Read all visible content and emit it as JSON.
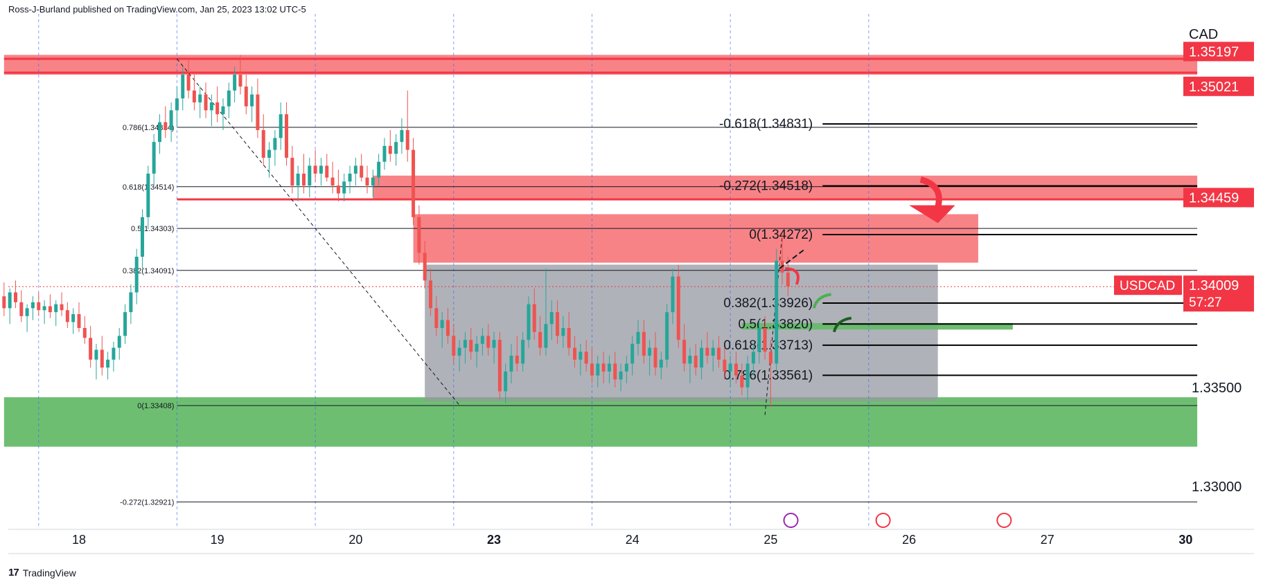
{
  "header": {
    "text": "Ross-J-Burland published on TradingView.com, Jan 25, 2023 13:02 UTC-5"
  },
  "footer": {
    "brand": "TradingView",
    "logo_glyph": "17"
  },
  "currency": "CAD",
  "symbol_tag": {
    "symbol": "USDCAD",
    "price": "1.34009",
    "countdown": "57:27",
    "color": "#f23645"
  },
  "colors": {
    "up": "#26a69a",
    "down": "#ef5350",
    "red_zone": "#f77c80",
    "green_zone": "#66bb6a",
    "grey_box": "#9598a1"
  },
  "chart_data": {
    "type": "candlestick",
    "ylim": [
      1.328,
      1.353
    ],
    "price_labels": [
      {
        "text": "1.35197",
        "value": 1.35197,
        "boxed": true
      },
      {
        "text": "1.35021",
        "value": 1.35021,
        "boxed": true
      },
      {
        "text": "1.34459",
        "value": 1.34459,
        "boxed": true
      },
      {
        "text": "1.33500",
        "value": 1.335,
        "boxed": false
      },
      {
        "text": "1.33000",
        "value": 1.33,
        "boxed": false
      }
    ],
    "x_ticks": [
      {
        "label": "18",
        "t": 0,
        "bold": false
      },
      {
        "label": "19",
        "t": 24,
        "bold": false
      },
      {
        "label": "20",
        "t": 48,
        "bold": false
      },
      {
        "label": "23",
        "t": 72,
        "bold": true
      },
      {
        "label": "24",
        "t": 96,
        "bold": false
      },
      {
        "label": "25",
        "t": 120,
        "bold": false
      },
      {
        "label": "26",
        "t": 144,
        "bold": false
      },
      {
        "label": "27",
        "t": 168,
        "bold": false
      },
      {
        "label": "30",
        "t": 192,
        "bold": true
      }
    ],
    "session_lines_t": [
      -7,
      17,
      41,
      65,
      89,
      113,
      137
    ],
    "zones": [
      {
        "name": "upper-resistance-zone",
        "t0": -13,
        "t1": 194,
        "y0": 1.3518,
        "y1": 1.3508,
        "color": "#f77c80"
      },
      {
        "name": "mid-resistance-zone",
        "t0": 51,
        "t1": 194,
        "y0": 1.3457,
        "y1": 1.3445,
        "color": "#f77c80"
      },
      {
        "name": "lower-resistance-zone",
        "t0": 58,
        "t1": 156,
        "y0": 1.34375,
        "y1": 1.3413,
        "color": "#f77c80"
      },
      {
        "name": "support-zone",
        "t0": -13,
        "t1": 194,
        "y0": 1.3345,
        "y1": 1.332,
        "color": "#66bb6a"
      },
      {
        "name": "range-box",
        "t0": 60,
        "t1": 149,
        "y0": 1.3412,
        "y1": 1.3343,
        "color": "#9598a1"
      },
      {
        "name": "target-bar",
        "t0": 115,
        "t1": 162,
        "y0": 1.33825,
        "y1": 1.33792,
        "color": "#66bb6a"
      }
    ],
    "hlines": [
      {
        "name": "top-red-line",
        "t0": -13,
        "t1": 194,
        "y": 1.3516,
        "color": "#f23645",
        "w": 3
      },
      {
        "name": "top-red-line-2",
        "t0": -13,
        "t1": 194,
        "y": 1.3509,
        "color": "#f23645",
        "w": 3
      },
      {
        "name": "mid-red-line",
        "t0": 17,
        "t1": 194,
        "y": 1.3445,
        "color": "#f23645",
        "w": 3
      }
    ],
    "fib_left": {
      "t0": 17,
      "t1": 194,
      "levels": [
        {
          "text": "0.786(1.34814)",
          "y": 1.34814
        },
        {
          "text": "0.618(1.34514)",
          "y": 1.34514
        },
        {
          "text": "0.5(1.34303)",
          "y": 1.34303
        },
        {
          "text": "0.382(1.34091)",
          "y": 1.34091
        },
        {
          "text": "0(1.33408)",
          "y": 1.33408
        },
        {
          "text": "-0.272(1.32921)",
          "y": 1.32921
        }
      ]
    },
    "fib_right": {
      "t0": 129,
      "t1": 194,
      "levels": [
        {
          "text": "-0.618(1.34831)",
          "y": 1.34831
        },
        {
          "text": "-0.272(1.34518)",
          "y": 1.34518
        },
        {
          "text": "0(1.34272)",
          "y": 1.34272
        },
        {
          "text": "0.382(1.33926)",
          "y": 1.33926
        },
        {
          "text": "0.5(1.33820)",
          "y": 1.3382
        },
        {
          "text": "0.618(1.33713)",
          "y": 1.33713
        },
        {
          "text": "0.786(1.33561)",
          "y": 1.33561
        }
      ]
    },
    "current_price": 1.34009,
    "candles": [
      [
        -13,
        1.3396,
        1.3403,
        1.3386,
        1.339
      ],
      [
        -12,
        1.339,
        1.34,
        1.3382,
        1.3398
      ],
      [
        -11,
        1.3398,
        1.3404,
        1.339,
        1.3393
      ],
      [
        -10,
        1.3393,
        1.3399,
        1.3383,
        1.3386
      ],
      [
        -9,
        1.3386,
        1.3392,
        1.3378,
        1.339
      ],
      [
        -8,
        1.339,
        1.3396,
        1.3384,
        1.3393
      ],
      [
        -7,
        1.3393,
        1.3398,
        1.3386,
        1.3389
      ],
      [
        -6,
        1.3389,
        1.3394,
        1.3382,
        1.3391
      ],
      [
        -5,
        1.3391,
        1.3397,
        1.3385,
        1.3388
      ],
      [
        -4,
        1.3388,
        1.3394,
        1.3381,
        1.3392
      ],
      [
        -3,
        1.3392,
        1.3398,
        1.3386,
        1.3389
      ],
      [
        -2,
        1.3389,
        1.3393,
        1.338,
        1.3383
      ],
      [
        -1,
        1.3383,
        1.339,
        1.3377,
        1.3387
      ],
      [
        0,
        1.3387,
        1.3393,
        1.3378,
        1.338
      ],
      [
        1,
        1.338,
        1.3386,
        1.3372,
        1.3375
      ],
      [
        2,
        1.3375,
        1.3381,
        1.336,
        1.3364
      ],
      [
        3,
        1.3364,
        1.3372,
        1.3354,
        1.3369
      ],
      [
        4,
        1.3369,
        1.3376,
        1.3356,
        1.336
      ],
      [
        5,
        1.336,
        1.3368,
        1.3354,
        1.3364
      ],
      [
        6,
        1.3364,
        1.3373,
        1.3358,
        1.337
      ],
      [
        7,
        1.337,
        1.338,
        1.3364,
        1.3376
      ],
      [
        8,
        1.3376,
        1.3392,
        1.3372,
        1.3388
      ],
      [
        9,
        1.3388,
        1.3402,
        1.3382,
        1.3398
      ],
      [
        10,
        1.3398,
        1.342,
        1.3392,
        1.3416
      ],
      [
        11,
        1.3416,
        1.344,
        1.341,
        1.3436
      ],
      [
        12,
        1.3436,
        1.3462,
        1.343,
        1.3458
      ],
      [
        13,
        1.3458,
        1.3478,
        1.3452,
        1.3474
      ],
      [
        14,
        1.3474,
        1.3488,
        1.3468,
        1.3484
      ],
      [
        15,
        1.3484,
        1.3492,
        1.3476,
        1.348
      ],
      [
        16,
        1.348,
        1.3494,
        1.3474,
        1.349
      ],
      [
        17,
        1.349,
        1.3502,
        1.3482,
        1.3496
      ],
      [
        18,
        1.3496,
        1.3512,
        1.349,
        1.3508
      ],
      [
        19,
        1.3508,
        1.3516,
        1.3496,
        1.35
      ],
      [
        20,
        1.35,
        1.3508,
        1.349,
        1.3494
      ],
      [
        21,
        1.3494,
        1.3502,
        1.3486,
        1.3498
      ],
      [
        22,
        1.3498,
        1.3504,
        1.3486,
        1.349
      ],
      [
        23,
        1.349,
        1.3498,
        1.3482,
        1.3494
      ],
      [
        24,
        1.3494,
        1.3502,
        1.3484,
        1.3488
      ],
      [
        25,
        1.3488,
        1.3496,
        1.348,
        1.3492
      ],
      [
        26,
        1.3492,
        1.3504,
        1.3486,
        1.35
      ],
      [
        27,
        1.35,
        1.3512,
        1.3494,
        1.3508
      ],
      [
        28,
        1.3508,
        1.3518,
        1.3498,
        1.3502
      ],
      [
        29,
        1.3502,
        1.3508,
        1.3488,
        1.3492
      ],
      [
        30,
        1.3492,
        1.3502,
        1.3484,
        1.3498
      ],
      [
        31,
        1.3498,
        1.3506,
        1.3476,
        1.348
      ],
      [
        32,
        1.348,
        1.3488,
        1.3462,
        1.3466
      ],
      [
        33,
        1.3466,
        1.3474,
        1.3456,
        1.347
      ],
      [
        34,
        1.347,
        1.348,
        1.3462,
        1.3476
      ],
      [
        35,
        1.3476,
        1.3494,
        1.347,
        1.3488
      ],
      [
        36,
        1.3488,
        1.3494,
        1.3462,
        1.3466
      ],
      [
        37,
        1.3466,
        1.3472,
        1.3448,
        1.3452
      ],
      [
        38,
        1.3452,
        1.3462,
        1.3444,
        1.3458
      ],
      [
        39,
        1.3458,
        1.3468,
        1.3448,
        1.3452
      ],
      [
        40,
        1.3452,
        1.3466,
        1.3446,
        1.3462
      ],
      [
        41,
        1.3462,
        1.347,
        1.3454,
        1.3458
      ],
      [
        42,
        1.3458,
        1.3466,
        1.3452,
        1.3462
      ],
      [
        43,
        1.3462,
        1.3468,
        1.3454,
        1.3456
      ],
      [
        44,
        1.3456,
        1.3464,
        1.3448,
        1.3452
      ],
      [
        45,
        1.3452,
        1.346,
        1.3444,
        1.3448
      ],
      [
        46,
        1.3448,
        1.3458,
        1.3444,
        1.3454
      ],
      [
        47,
        1.3454,
        1.3462,
        1.3448,
        1.3458
      ],
      [
        48,
        1.3458,
        1.3466,
        1.3452,
        1.3462
      ],
      [
        49,
        1.3462,
        1.3468,
        1.3454,
        1.3456
      ],
      [
        50,
        1.3456,
        1.3462,
        1.3448,
        1.3452
      ],
      [
        51,
        1.3452,
        1.346,
        1.3446,
        1.3456
      ],
      [
        52,
        1.3456,
        1.3468,
        1.3452,
        1.3464
      ],
      [
        53,
        1.3464,
        1.3476,
        1.346,
        1.3472
      ],
      [
        54,
        1.3472,
        1.348,
        1.3464,
        1.3468
      ],
      [
        55,
        1.3468,
        1.3478,
        1.3462,
        1.3474
      ],
      [
        56,
        1.3474,
        1.3486,
        1.3468,
        1.348
      ],
      [
        57,
        1.348,
        1.35,
        1.3464,
        1.347
      ],
      [
        58,
        1.347,
        1.3476,
        1.3432,
        1.3436
      ],
      [
        59,
        1.3436,
        1.3442,
        1.3412,
        1.3418
      ],
      [
        60,
        1.3418,
        1.3424,
        1.34,
        1.3404
      ],
      [
        61,
        1.3404,
        1.341,
        1.3386,
        1.339
      ],
      [
        62,
        1.339,
        1.3396,
        1.3376,
        1.338
      ],
      [
        63,
        1.338,
        1.3388,
        1.337,
        1.3384
      ],
      [
        64,
        1.3384,
        1.339,
        1.3372,
        1.3376
      ],
      [
        65,
        1.3376,
        1.3382,
        1.3362,
        1.3366
      ],
      [
        66,
        1.3366,
        1.3374,
        1.3358,
        1.337
      ],
      [
        67,
        1.337,
        1.3378,
        1.3362,
        1.3374
      ],
      [
        68,
        1.3374,
        1.338,
        1.3364,
        1.3368
      ],
      [
        69,
        1.3368,
        1.3376,
        1.336,
        1.3372
      ],
      [
        70,
        1.3372,
        1.338,
        1.3366,
        1.3376
      ],
      [
        71,
        1.3376,
        1.3382,
        1.3366,
        1.337
      ],
      [
        72,
        1.337,
        1.3378,
        1.3362,
        1.3374
      ],
      [
        73,
        1.3374,
        1.3378,
        1.3344,
        1.3348
      ],
      [
        74,
        1.3348,
        1.3362,
        1.3342,
        1.3358
      ],
      [
        75,
        1.3358,
        1.3372,
        1.3352,
        1.3366
      ],
      [
        76,
        1.3366,
        1.3376,
        1.3358,
        1.3362
      ],
      [
        77,
        1.3362,
        1.3378,
        1.3358,
        1.3374
      ],
      [
        78,
        1.3374,
        1.3396,
        1.337,
        1.3392
      ],
      [
        79,
        1.3392,
        1.34,
        1.3374,
        1.3378
      ],
      [
        80,
        1.3378,
        1.3386,
        1.3366,
        1.337
      ],
      [
        81,
        1.337,
        1.341,
        1.3366,
        1.3382
      ],
      [
        82,
        1.3382,
        1.3394,
        1.3374,
        1.3388
      ],
      [
        83,
        1.3388,
        1.3394,
        1.3372,
        1.3376
      ],
      [
        84,
        1.3376,
        1.3386,
        1.337,
        1.338
      ],
      [
        85,
        1.338,
        1.3388,
        1.3366,
        1.337
      ],
      [
        86,
        1.337,
        1.3376,
        1.336,
        1.3364
      ],
      [
        87,
        1.3364,
        1.3372,
        1.3356,
        1.3368
      ],
      [
        88,
        1.3368,
        1.3374,
        1.3358,
        1.3362
      ],
      [
        89,
        1.3362,
        1.337,
        1.3352,
        1.3356
      ],
      [
        90,
        1.3356,
        1.3366,
        1.335,
        1.3362
      ],
      [
        91,
        1.3362,
        1.3368,
        1.3352,
        1.3358
      ],
      [
        92,
        1.3358,
        1.3366,
        1.3352,
        1.3362
      ],
      [
        93,
        1.3362,
        1.3368,
        1.335,
        1.3354
      ],
      [
        94,
        1.3354,
        1.3362,
        1.3348,
        1.3358
      ],
      [
        95,
        1.3358,
        1.3366,
        1.3352,
        1.3362
      ],
      [
        96,
        1.3362,
        1.3376,
        1.3356,
        1.3372
      ],
      [
        97,
        1.3372,
        1.3384,
        1.3366,
        1.3378
      ],
      [
        98,
        1.3378,
        1.3384,
        1.3362,
        1.3366
      ],
      [
        99,
        1.3366,
        1.3374,
        1.3356,
        1.337
      ],
      [
        100,
        1.337,
        1.3378,
        1.3356,
        1.336
      ],
      [
        101,
        1.336,
        1.3368,
        1.3354,
        1.3364
      ],
      [
        102,
        1.3364,
        1.3392,
        1.336,
        1.3388
      ],
      [
        103,
        1.3388,
        1.341,
        1.3382,
        1.3406
      ],
      [
        104,
        1.3406,
        1.3412,
        1.337,
        1.3374
      ],
      [
        105,
        1.3374,
        1.3382,
        1.3358,
        1.3362
      ],
      [
        106,
        1.3362,
        1.337,
        1.3352,
        1.3366
      ],
      [
        107,
        1.3366,
        1.3372,
        1.3356,
        1.336
      ],
      [
        108,
        1.336,
        1.3374,
        1.3354,
        1.337
      ],
      [
        109,
        1.337,
        1.3378,
        1.3362,
        1.3366
      ],
      [
        110,
        1.3366,
        1.3374,
        1.3358,
        1.337
      ],
      [
        111,
        1.337,
        1.3376,
        1.336,
        1.3364
      ],
      [
        112,
        1.3364,
        1.337,
        1.3354,
        1.3358
      ],
      [
        113,
        1.3358,
        1.3366,
        1.335,
        1.3362
      ],
      [
        114,
        1.3362,
        1.3368,
        1.3352,
        1.3356
      ],
      [
        115,
        1.3356,
        1.3362,
        1.3346,
        1.335
      ],
      [
        116,
        1.335,
        1.3366,
        1.3344,
        1.3362
      ],
      [
        117,
        1.3362,
        1.3372,
        1.3356,
        1.3368
      ],
      [
        118,
        1.3368,
        1.3384,
        1.3362,
        1.338
      ],
      [
        119,
        1.338,
        1.3386,
        1.3364,
        1.3368
      ],
      [
        120,
        1.3368,
        1.3374,
        1.334,
        1.3362
      ],
      [
        121,
        1.3362,
        1.342,
        1.3358,
        1.3414
      ],
      [
        122,
        1.3414,
        1.3428,
        1.3402,
        1.3408
      ],
      [
        123,
        1.3408,
        1.3416,
        1.3396,
        1.3401
      ]
    ],
    "title": "",
    "xlabel": "",
    "ylabel": ""
  }
}
